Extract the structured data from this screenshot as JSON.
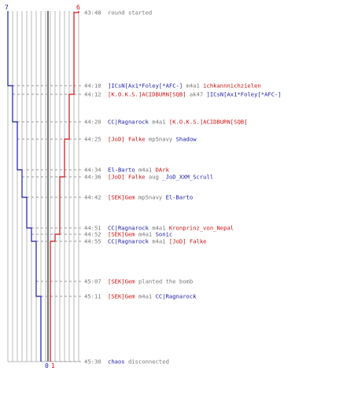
{
  "colors": {
    "blue": "#1a1aa8",
    "red": "#cc1111",
    "gray": "#777777",
    "grid": "#b8b8b8",
    "center": "#777777",
    "dash": "#999999"
  },
  "counts": {
    "blue_start": "7",
    "red_start": "6",
    "blue_end": "0",
    "red_end": "1"
  },
  "events": [
    {
      "time": "43:48",
      "segs": [
        {
          "c": "gray",
          "t": "round started"
        }
      ]
    },
    {
      "time": "44:10",
      "segs": [
        {
          "c": "blue",
          "t": "]ICsN[Ax1*Foley[*AFC-]"
        },
        {
          "c": "gray",
          "t": " m4a1 "
        },
        {
          "c": "red",
          "t": "ichkannnichzielen"
        }
      ]
    },
    {
      "time": "44:12",
      "segs": [
        {
          "c": "red",
          "t": "[K.O.K.S.]ACIDBURN[SQB]"
        },
        {
          "c": "gray",
          "t": " ak47 "
        },
        {
          "c": "blue",
          "t": "]ICsN[Ax1*Foley[*AFC-]"
        }
      ]
    },
    {
      "time": "44:20",
      "segs": [
        {
          "c": "blue",
          "t": "CC|Ragnarock"
        },
        {
          "c": "gray",
          "t": " m4a1 "
        },
        {
          "c": "red",
          "t": "[K.O.K.S.]ACIDBURN[SQB]"
        }
      ]
    },
    {
      "time": "44:25",
      "segs": [
        {
          "c": "red",
          "t": "[JoD] Falke"
        },
        {
          "c": "gray",
          "t": " mp5navy "
        },
        {
          "c": "blue",
          "t": "Shadow"
        }
      ]
    },
    {
      "time": "44:34",
      "segs": [
        {
          "c": "blue",
          "t": "El-Barto"
        },
        {
          "c": "gray",
          "t": " m4a1 "
        },
        {
          "c": "red",
          "t": "DArk"
        }
      ]
    },
    {
      "time": "44:36",
      "segs": [
        {
          "c": "red",
          "t": "[JoD] Falke"
        },
        {
          "c": "gray",
          "t": " aug "
        },
        {
          "c": "blue",
          "t": "_JoD_XXM_Scrull"
        }
      ]
    },
    {
      "time": "44:42",
      "segs": [
        {
          "c": "red",
          "t": "[SEK]Gem"
        },
        {
          "c": "gray",
          "t": " mp5navy "
        },
        {
          "c": "blue",
          "t": "El-Barto"
        }
      ]
    },
    {
      "time": "44:51",
      "segs": [
        {
          "c": "blue",
          "t": "CC|Ragnarock"
        },
        {
          "c": "gray",
          "t": " m4a1 "
        },
        {
          "c": "red",
          "t": "Kronprinz_von_Nepal"
        }
      ]
    },
    {
      "time": "44:52",
      "segs": [
        {
          "c": "red",
          "t": "[SEK]Gem"
        },
        {
          "c": "gray",
          "t": " m4a1 "
        },
        {
          "c": "blue",
          "t": "Sonic"
        }
      ]
    },
    {
      "time": "44:55",
      "segs": [
        {
          "c": "blue",
          "t": "CC|Ragnarock"
        },
        {
          "c": "gray",
          "t": " m4a1 "
        },
        {
          "c": "red",
          "t": "[JoD] Falke"
        }
      ]
    },
    {
      "time": "45:07",
      "segs": [
        {
          "c": "red",
          "t": "[SEK]Gem"
        },
        {
          "c": "gray",
          "t": " planted the bomb"
        }
      ]
    },
    {
      "time": "45:11",
      "segs": [
        {
          "c": "red",
          "t": "[SEK]Gem"
        },
        {
          "c": "gray",
          "t": " m4a1 "
        },
        {
          "c": "blue",
          "t": "CC|Ragnarock"
        }
      ]
    },
    {
      "time": "45:30",
      "segs": [
        {
          "c": "blue",
          "t": "chaos"
        },
        {
          "c": "gray",
          "t": " disconnected"
        }
      ]
    }
  ]
}
